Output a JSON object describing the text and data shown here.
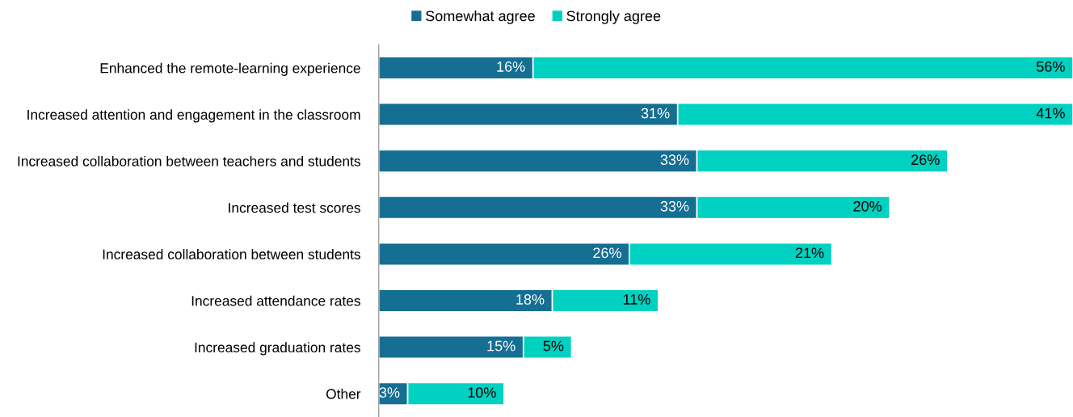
{
  "chart_data": {
    "type": "bar",
    "orientation": "horizontal",
    "stacked": true,
    "legend": "top",
    "grid": false,
    "categories": [
      "Enhanced the remote-learning experience",
      "Increased attention and engagement in the classroom",
      "Increased collaboration between teachers and students",
      "Increased test scores",
      "Increased collaboration between students",
      "Increased attendance rates",
      "Increased graduation rates",
      "Other"
    ],
    "series": [
      {
        "name": "Somewhat agree",
        "color": "#156f93",
        "values": [
          16,
          31,
          33,
          33,
          26,
          18,
          15,
          3
        ],
        "value_labels": [
          "16%",
          "31%",
          "33%",
          "33%",
          "26%",
          "18%",
          "15%",
          "3%"
        ]
      },
      {
        "name": "Strongly agree",
        "color": "#00d1c1",
        "values": [
          56,
          41,
          26,
          20,
          21,
          11,
          5,
          10
        ],
        "value_labels": [
          "56%",
          "41%",
          "26%",
          "20%",
          "21%",
          "11%",
          "5%",
          "10%"
        ]
      }
    ]
  }
}
